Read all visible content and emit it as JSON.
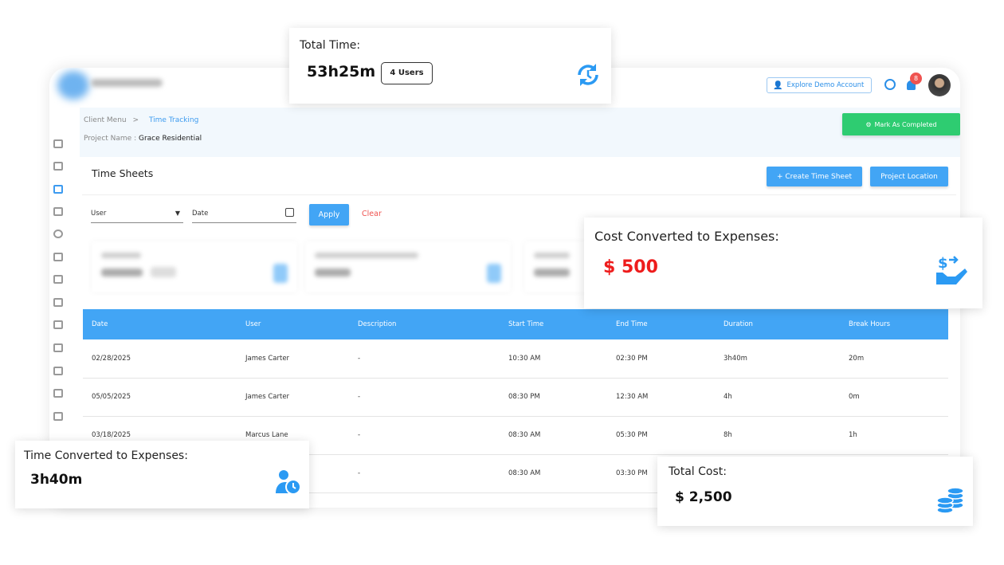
{
  "header": {
    "demo_button": "Explore Demo Account",
    "notification_count": "8"
  },
  "breadcrumb": {
    "parent": "Client Menu",
    "separator": ">",
    "current": "Time Tracking"
  },
  "project": {
    "label": "Project Name :",
    "name": "Grace Residential"
  },
  "mark_completed": "Mark As Completed",
  "panel": {
    "title": "Time Sheets",
    "create_button": "+ Create Time Sheet",
    "location_button": "Project Location"
  },
  "filters": {
    "user_label": "User",
    "date_label": "Date",
    "apply": "Apply",
    "clear": "Clear"
  },
  "table": {
    "columns": [
      "Date",
      "User",
      "Description",
      "Start Time",
      "End Time",
      "Duration",
      "Break Hours"
    ],
    "rows": [
      [
        "02/28/2025",
        "James Carter",
        "-",
        "10:30 AM",
        "02:30 PM",
        "3h40m",
        "20m"
      ],
      [
        "05/05/2025",
        "James Carter",
        "-",
        "08:30 PM",
        "12:30 AM",
        "4h",
        "0m"
      ],
      [
        "03/18/2025",
        "Marcus Lane",
        "-",
        "08:30 AM",
        "05:30 PM",
        "8h",
        "1h"
      ],
      [
        "",
        "",
        "-",
        "08:30 AM",
        "03:30 PM",
        "",
        ""
      ]
    ]
  },
  "cards": {
    "total_time": {
      "title": "Total Time:",
      "value": "53h25m",
      "badge": "4 Users"
    },
    "cost_converted": {
      "title": "Cost Converted to Expenses:",
      "value": "$ 500"
    },
    "time_converted": {
      "title": "Time Converted to Expenses:",
      "value": "3h40m"
    },
    "total_cost": {
      "title": "Total Cost:",
      "value": "$ 2,500"
    }
  },
  "colors": {
    "accent": "#42a5f5",
    "success": "#2ecc71",
    "danger": "#e53935",
    "cost_value": "#ee1c1c"
  }
}
